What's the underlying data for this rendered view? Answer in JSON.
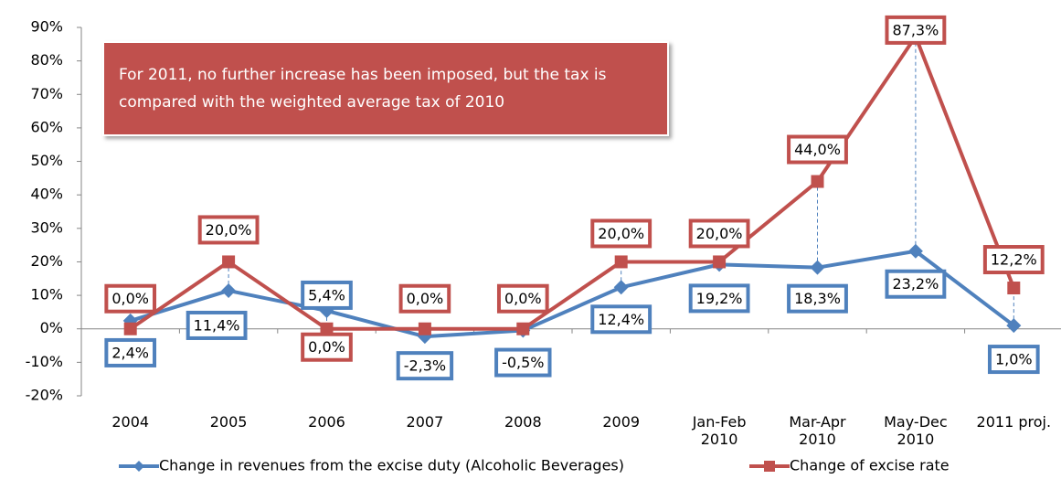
{
  "chart_data": {
    "type": "line",
    "categories": [
      "2004",
      "2005",
      "2006",
      "2007",
      "2008",
      "2009",
      "Jan-Feb\n2010",
      "Mar-Apr\n2010",
      "May-Dec\n2010",
      "2011 proj."
    ],
    "series": [
      {
        "name": "Change in revenues from the excise duty (Alcoholic Beverages)",
        "color": "#4f81bd",
        "values": [
          2.4,
          11.4,
          5.4,
          -2.3,
          -0.5,
          12.4,
          19.2,
          18.3,
          23.2,
          1.0
        ],
        "value_labels": [
          "2,4%",
          "11,4%",
          "5,4%",
          "-2,3%",
          "-0,5%",
          "12,4%",
          "19,2%",
          "18,3%",
          "23,2%",
          "1,0%"
        ]
      },
      {
        "name": "Change of excise rate",
        "color": "#c0504d",
        "values": [
          0,
          20,
          0,
          0,
          0,
          20,
          20,
          44,
          87.3,
          12.2
        ],
        "value_labels": [
          "0,0%",
          "20,0%",
          "0,0%",
          "0,0%",
          "0,0%",
          "20,0%",
          "20,0%",
          "44,0%",
          "87,3%",
          "12,2%"
        ]
      }
    ],
    "ylim": [
      -20,
      90
    ],
    "yticks": [
      {
        "value": -20,
        "label": "-20%"
      },
      {
        "value": -10,
        "label": "-10%"
      },
      {
        "value": 0,
        "label": "0%"
      },
      {
        "value": 10,
        "label": "10%"
      },
      {
        "value": 20,
        "label": "20%"
      },
      {
        "value": 30,
        "label": "30%"
      },
      {
        "value": 40,
        "label": "40%"
      },
      {
        "value": 50,
        "label": "50%"
      },
      {
        "value": 60,
        "label": "60%"
      },
      {
        "value": 70,
        "label": "70%"
      },
      {
        "value": 80,
        "label": "80%"
      },
      {
        "value": 90,
        "label": "90%"
      }
    ],
    "annotation": "For 2011, no further increase has been imposed, but the tax is compared with the weighted average tax of 2010",
    "legend": "bottom"
  }
}
